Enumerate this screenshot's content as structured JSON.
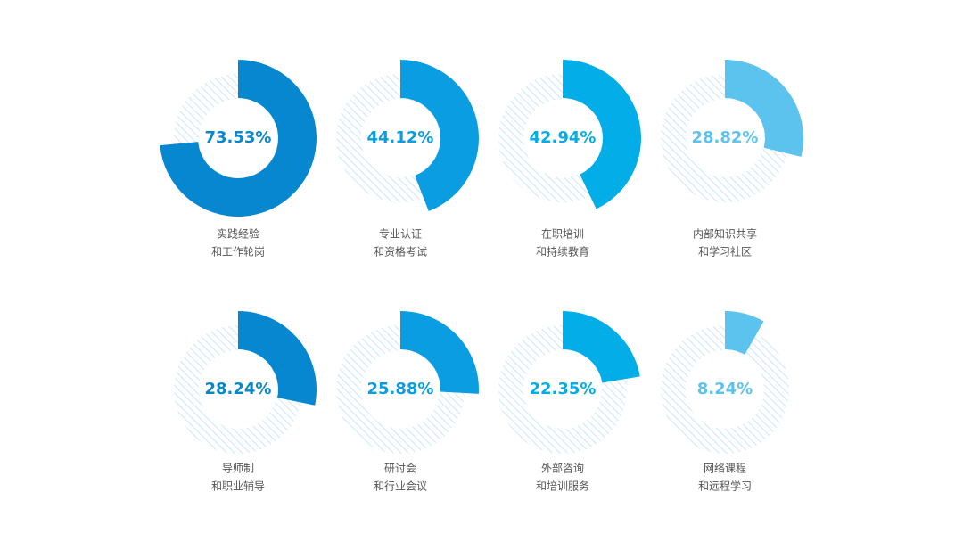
{
  "chart_data": {
    "type": "donut",
    "categories": [
      [
        "实践经验",
        "和工作轮岗"
      ],
      [
        "专业认证",
        "和资格考试"
      ],
      [
        "在职培训",
        "和持续教育"
      ],
      [
        "内部知识共享",
        "和学习社区"
      ],
      [
        "导师制",
        "和职业辅导"
      ],
      [
        "研讨会",
        "和行业会议"
      ],
      [
        "外部咨询",
        "和培训服务"
      ],
      [
        "网络课程",
        "和远程学习"
      ]
    ],
    "values": [
      73.53,
      44.12,
      42.94,
      28.82,
      28.24,
      25.88,
      22.35,
      8.24
    ],
    "value_labels": [
      "73.53%",
      "44.12%",
      "42.94%",
      "28.82%",
      "28.24%",
      "25.88%",
      "22.35%",
      "8.24%"
    ],
    "colors": [
      "#0787cf",
      "#0a9de2",
      "#03aee8",
      "#5cc3ef",
      "#0787cf",
      "#0a9de2",
      "#03aee8",
      "#5cc3ef"
    ]
  }
}
